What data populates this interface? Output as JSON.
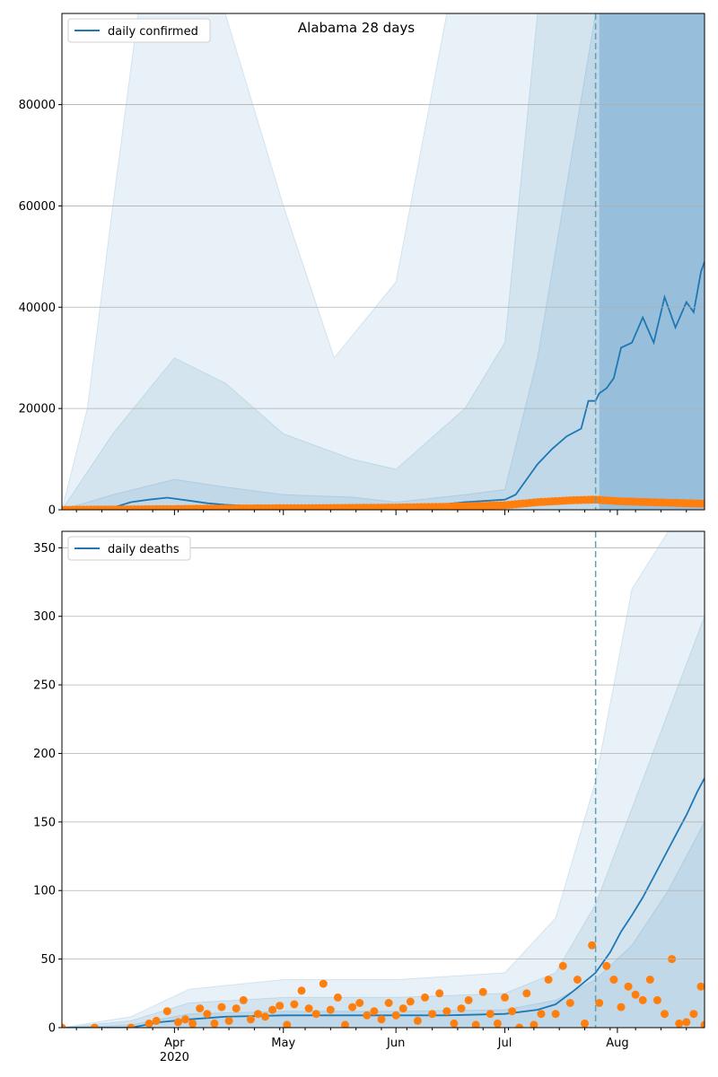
{
  "colors": {
    "line": "#1f77b4",
    "band": "#1f77b4",
    "dots": "#ff7f0e",
    "grid": "#b0b0b0",
    "vline": "#5fa2b8"
  },
  "chart_data": [
    {
      "type": "line",
      "title": "Alabama 28 days",
      "legend": {
        "label": "daily confirmed",
        "placement": "top-left"
      },
      "x_range": [
        "2020-03-01",
        "2020-08-25"
      ],
      "ylim": [
        0,
        98000
      ],
      "yticks": [
        0,
        20000,
        40000,
        60000,
        80000
      ],
      "x_major_ticks": [
        {
          "date": "2020-04-01",
          "label": "Apr",
          "sublabel": "2020"
        },
        {
          "date": "2020-05-01",
          "label": "May",
          "sublabel": ""
        },
        {
          "date": "2020-06-01",
          "label": "Jun",
          "sublabel": ""
        },
        {
          "date": "2020-07-01",
          "label": "Jul",
          "sublabel": ""
        },
        {
          "date": "2020-08-01",
          "label": "Aug",
          "sublabel": ""
        }
      ],
      "grid": "horizontal",
      "cutoff_date": "2020-07-26",
      "forecast_shaded_from": "2020-07-27",
      "median": {
        "dates": [
          "2020-03-01",
          "2020-03-10",
          "2020-03-15",
          "2020-03-20",
          "2020-03-25",
          "2020-03-30",
          "2020-04-05",
          "2020-04-10",
          "2020-04-15",
          "2020-04-20",
          "2020-04-25",
          "2020-05-01",
          "2020-05-10",
          "2020-05-20",
          "2020-06-01",
          "2020-06-10",
          "2020-06-20",
          "2020-07-01",
          "2020-07-04",
          "2020-07-07",
          "2020-07-10",
          "2020-07-14",
          "2020-07-18",
          "2020-07-22",
          "2020-07-24",
          "2020-07-26",
          "2020-07-27",
          "2020-07-29",
          "2020-07-31",
          "2020-08-02",
          "2020-08-05",
          "2020-08-08",
          "2020-08-11",
          "2020-08-14",
          "2020-08-17",
          "2020-08-20",
          "2020-08-22",
          "2020-08-24",
          "2020-08-25"
        ],
        "values": [
          0,
          50,
          400,
          1500,
          2000,
          2400,
          1800,
          1300,
          1000,
          800,
          600,
          500,
          500,
          500,
          600,
          800,
          1500,
          2000,
          3000,
          6000,
          9000,
          12000,
          14500,
          16000,
          21500,
          21500,
          23000,
          24000,
          26000,
          32000,
          33000,
          38000,
          33000,
          42000,
          36000,
          41000,
          39000,
          47000,
          49000
        ]
      },
      "observed": {
        "dates": [
          "2020-03-01",
          "2020-03-15",
          "2020-04-01",
          "2020-04-15",
          "2020-05-01",
          "2020-05-15",
          "2020-06-01",
          "2020-06-15",
          "2020-07-01",
          "2020-07-10",
          "2020-07-20",
          "2020-07-26",
          "2020-08-01",
          "2020-08-10",
          "2020-08-20",
          "2020-08-25"
        ],
        "values": [
          0,
          50,
          150,
          250,
          300,
          350,
          450,
          600,
          900,
          1500,
          1900,
          2000,
          1700,
          1500,
          1300,
          1200
        ]
      },
      "bands_note": "uncertainty ranges widen toward the forecast",
      "bands": [
        {
          "dates": [
            "2020-03-01",
            "2020-03-15",
            "2020-04-01",
            "2020-04-15",
            "2020-05-01",
            "2020-05-20",
            "2020-06-01",
            "2020-06-20",
            "2020-07-01",
            "2020-07-10",
            "2020-07-26",
            "2020-08-25"
          ],
          "low": [
            0,
            0,
            0,
            0,
            0,
            0,
            0,
            0,
            0,
            0,
            0,
            0
          ],
          "high": [
            0,
            3000,
            6000,
            4500,
            3000,
            2500,
            1500,
            3000,
            4000,
            30000,
            98000,
            98000
          ]
        },
        {
          "dates": [
            "2020-03-01",
            "2020-03-15",
            "2020-04-01",
            "2020-04-15",
            "2020-05-01",
            "2020-05-20",
            "2020-06-01",
            "2020-06-20",
            "2020-07-01",
            "2020-07-10",
            "2020-07-26",
            "2020-08-25"
          ],
          "low": [
            0,
            0,
            0,
            0,
            0,
            0,
            0,
            0,
            0,
            0,
            0,
            0
          ],
          "high": [
            0,
            15000,
            30000,
            25000,
            15000,
            10000,
            8000,
            20000,
            33000,
            98000,
            98000,
            98000
          ]
        },
        {
          "dates": [
            "2020-03-01",
            "2020-03-08",
            "2020-03-15",
            "2020-03-22",
            "2020-04-01",
            "2020-04-15",
            "2020-05-01",
            "2020-05-15",
            "2020-06-01",
            "2020-06-15",
            "2020-07-01",
            "2020-07-26",
            "2020-08-25"
          ],
          "low": [
            0,
            0,
            0,
            0,
            0,
            0,
            0,
            0,
            0,
            0,
            0,
            0,
            0
          ],
          "high": [
            0,
            20000,
            60000,
            98000,
            98000,
            98000,
            60000,
            30000,
            45000,
            98000,
            98000,
            98000,
            98000
          ]
        }
      ]
    },
    {
      "type": "line",
      "title": "",
      "legend": {
        "label": "daily deaths",
        "placement": "top-left"
      },
      "x_range": [
        "2020-03-01",
        "2020-08-25"
      ],
      "ylim": [
        0,
        362
      ],
      "yticks": [
        0,
        50,
        100,
        150,
        200,
        250,
        300,
        350
      ],
      "x_major_ticks": [
        {
          "date": "2020-04-01",
          "label": "Apr",
          "sublabel": "2020"
        },
        {
          "date": "2020-05-01",
          "label": "May",
          "sublabel": ""
        },
        {
          "date": "2020-06-01",
          "label": "Jun",
          "sublabel": ""
        },
        {
          "date": "2020-07-01",
          "label": "Jul",
          "sublabel": ""
        },
        {
          "date": "2020-08-01",
          "label": "Aug",
          "sublabel": ""
        }
      ],
      "grid": "horizontal",
      "cutoff_date": "2020-07-26",
      "median": {
        "dates": [
          "2020-03-01",
          "2020-03-20",
          "2020-03-28",
          "2020-04-05",
          "2020-04-15",
          "2020-05-01",
          "2020-05-15",
          "2020-06-01",
          "2020-06-15",
          "2020-07-01",
          "2020-07-10",
          "2020-07-15",
          "2020-07-20",
          "2020-07-26",
          "2020-07-30",
          "2020-08-02",
          "2020-08-05",
          "2020-08-08",
          "2020-08-11",
          "2020-08-14",
          "2020-08-17",
          "2020-08-20",
          "2020-08-23",
          "2020-08-25"
        ],
        "values": [
          0,
          0,
          4,
          6,
          8,
          9,
          9,
          9,
          9,
          10,
          13,
          17,
          27,
          40,
          55,
          70,
          82,
          95,
          110,
          125,
          140,
          155,
          172,
          182
        ]
      },
      "observed": {
        "dates": [
          "2020-03-01",
          "2020-03-10",
          "2020-03-20",
          "2020-03-25",
          "2020-03-27",
          "2020-03-30",
          "2020-04-02",
          "2020-04-04",
          "2020-04-06",
          "2020-04-08",
          "2020-04-10",
          "2020-04-12",
          "2020-04-14",
          "2020-04-16",
          "2020-04-18",
          "2020-04-20",
          "2020-04-22",
          "2020-04-24",
          "2020-04-26",
          "2020-04-28",
          "2020-04-30",
          "2020-05-02",
          "2020-05-04",
          "2020-05-06",
          "2020-05-08",
          "2020-05-10",
          "2020-05-12",
          "2020-05-14",
          "2020-05-16",
          "2020-05-18",
          "2020-05-20",
          "2020-05-22",
          "2020-05-24",
          "2020-05-26",
          "2020-05-28",
          "2020-05-30",
          "2020-06-01",
          "2020-06-03",
          "2020-06-05",
          "2020-06-07",
          "2020-06-09",
          "2020-06-11",
          "2020-06-13",
          "2020-06-15",
          "2020-06-17",
          "2020-06-19",
          "2020-06-21",
          "2020-06-23",
          "2020-06-25",
          "2020-06-27",
          "2020-06-29",
          "2020-07-01",
          "2020-07-03",
          "2020-07-05",
          "2020-07-07",
          "2020-07-09",
          "2020-07-11",
          "2020-07-13",
          "2020-07-15",
          "2020-07-17",
          "2020-07-19",
          "2020-07-21",
          "2020-07-23",
          "2020-07-25",
          "2020-07-27",
          "2020-07-29",
          "2020-07-31",
          "2020-08-02",
          "2020-08-04",
          "2020-08-06",
          "2020-08-08",
          "2020-08-10",
          "2020-08-12",
          "2020-08-14",
          "2020-08-16",
          "2020-08-18",
          "2020-08-20",
          "2020-08-22",
          "2020-08-24",
          "2020-08-25"
        ],
        "values": [
          0,
          0,
          0,
          3,
          5,
          12,
          4,
          6,
          3,
          14,
          10,
          3,
          15,
          5,
          14,
          20,
          6,
          10,
          8,
          13,
          16,
          2,
          17,
          27,
          14,
          10,
          32,
          13,
          22,
          2,
          15,
          18,
          9,
          12,
          6,
          18,
          9,
          14,
          19,
          5,
          22,
          10,
          25,
          12,
          3,
          14,
          20,
          2,
          26,
          10,
          3,
          22,
          12,
          0,
          25,
          2,
          10,
          35,
          10,
          45,
          18,
          35,
          3,
          60,
          18,
          45,
          35,
          15,
          30,
          24,
          20,
          35,
          20,
          10,
          50,
          3,
          4,
          10,
          30,
          2
        ]
      },
      "bands": [
        {
          "dates": [
            "2020-03-01",
            "2020-03-20",
            "2020-04-05",
            "2020-05-01",
            "2020-06-01",
            "2020-07-01",
            "2020-07-15",
            "2020-07-26",
            "2020-08-05",
            "2020-08-15",
            "2020-08-25"
          ],
          "low": [
            0,
            0,
            0,
            0,
            0,
            0,
            0,
            0,
            0,
            0,
            0
          ],
          "high": [
            0,
            2,
            10,
            12,
            12,
            13,
            20,
            35,
            60,
            100,
            150
          ]
        },
        {
          "dates": [
            "2020-03-01",
            "2020-03-20",
            "2020-04-05",
            "2020-05-01",
            "2020-06-01",
            "2020-07-01",
            "2020-07-15",
            "2020-07-26",
            "2020-08-05",
            "2020-08-15",
            "2020-08-25"
          ],
          "low": [
            0,
            0,
            0,
            0,
            0,
            0,
            0,
            0,
            0,
            0,
            0
          ],
          "high": [
            0,
            5,
            18,
            22,
            22,
            25,
            40,
            90,
            160,
            230,
            300
          ]
        },
        {
          "dates": [
            "2020-03-01",
            "2020-03-20",
            "2020-04-05",
            "2020-05-01",
            "2020-06-01",
            "2020-07-01",
            "2020-07-15",
            "2020-07-26",
            "2020-08-05",
            "2020-08-15",
            "2020-08-25"
          ],
          "low": [
            0,
            0,
            0,
            0,
            0,
            0,
            0,
            0,
            0,
            0,
            0
          ],
          "high": [
            0,
            8,
            28,
            35,
            35,
            40,
            80,
            180,
            320,
            362,
            362
          ]
        }
      ]
    }
  ]
}
